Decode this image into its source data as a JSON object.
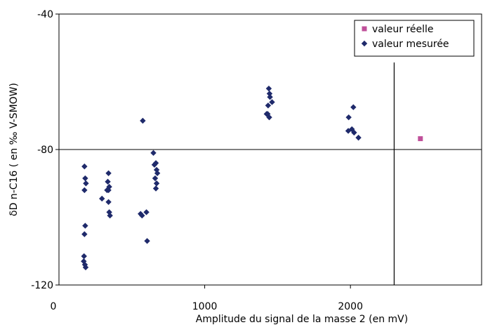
{
  "chart_data": {
    "type": "scatter",
    "title": "",
    "xlabel": "Amplitude du signal de la masse 2 (en mV)",
    "ylabel": "δD n-C16 ( en ‰ V-SMOW)",
    "xlim": [
      0,
      2900
    ],
    "ylim": [
      -120,
      -40
    ],
    "x_ticks": [
      0,
      1000,
      2000
    ],
    "y_ticks": [
      -40,
      -80,
      -120
    ],
    "x_tick_labels": [
      "0",
      "1000",
      "2000"
    ],
    "y_tick_labels": [
      "-40",
      "-80",
      "-120"
    ],
    "reference_lines": {
      "horizontal_y": -80,
      "vertical_x": 2300
    },
    "grid": false,
    "legend_position": "top-right",
    "series": [
      {
        "name": "valeur réelle",
        "marker": "square",
        "color": "#c0509a",
        "points": [
          [
            2480,
            -76.8
          ]
        ]
      },
      {
        "name": "valeur mesurée",
        "marker": "diamond",
        "color": "#1f2a6b",
        "points": [
          [
            175,
            -85.0
          ],
          [
            180,
            -88.5
          ],
          [
            185,
            -90.0
          ],
          [
            175,
            -92.0
          ],
          [
            180,
            -102.5
          ],
          [
            175,
            -105.0
          ],
          [
            172,
            -111.5
          ],
          [
            170,
            -113.0
          ],
          [
            178,
            -114.0
          ],
          [
            183,
            -114.8
          ],
          [
            295,
            -94.5
          ],
          [
            340,
            -87.0
          ],
          [
            335,
            -89.5
          ],
          [
            345,
            -91.0
          ],
          [
            340,
            -92.0
          ],
          [
            330,
            -92.0
          ],
          [
            340,
            -95.5
          ],
          [
            345,
            -98.5
          ],
          [
            350,
            -99.5
          ],
          [
            575,
            -71.5
          ],
          [
            560,
            -99.0
          ],
          [
            570,
            -99.5
          ],
          [
            600,
            -98.5
          ],
          [
            605,
            -107.0
          ],
          [
            648,
            -81.0
          ],
          [
            655,
            -84.5
          ],
          [
            665,
            -84.0
          ],
          [
            670,
            -86.0
          ],
          [
            675,
            -87.0
          ],
          [
            660,
            -88.5
          ],
          [
            670,
            -90.0
          ],
          [
            665,
            -91.5
          ],
          [
            1440,
            -62.0
          ],
          [
            1445,
            -63.5
          ],
          [
            1448,
            -64.5
          ],
          [
            1462,
            -66.0
          ],
          [
            1435,
            -67.0
          ],
          [
            1425,
            -69.5
          ],
          [
            1432,
            -69.5
          ],
          [
            1443,
            -70.5
          ],
          [
            2020,
            -67.5
          ],
          [
            1988,
            -70.5
          ],
          [
            1985,
            -74.5
          ],
          [
            2010,
            -74.0
          ],
          [
            2025,
            -75.0
          ],
          [
            2055,
            -76.5
          ]
        ]
      }
    ]
  }
}
